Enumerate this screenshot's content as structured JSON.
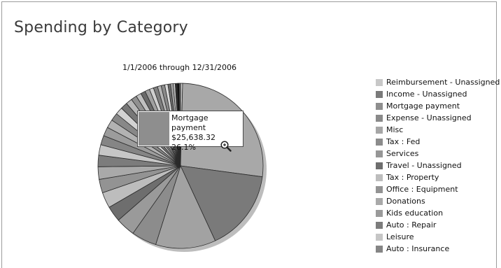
{
  "report": {
    "title": "Spending by Category",
    "date_range": "1/1/2006 through 12/31/2006"
  },
  "tooltip": {
    "category": "Mortgage payment",
    "amount": "$25,638.32",
    "percent": "26.1%",
    "swatch_color": "#8e8e8e"
  },
  "icons": {
    "cursor": "magnifier-icon"
  },
  "chart_data": {
    "type": "pie",
    "title": "Spending by Category",
    "subtitle": "1/1/2006 through 12/31/2006",
    "legend_position": "right",
    "highlighted": "Mortgage payment",
    "legend": [
      {
        "name": "Reimbursement - Unassigned",
        "color": "#c8c8c8"
      },
      {
        "name": "Income - Unassigned",
        "color": "#7a7a7a"
      },
      {
        "name": "Mortgage payment",
        "color": "#8e8e8e"
      },
      {
        "name": "Expense - Unassigned",
        "color": "#8a8a8a"
      },
      {
        "name": "Misc",
        "color": "#a6a6a6"
      },
      {
        "name": "Tax : Fed",
        "color": "#8c8c8c"
      },
      {
        "name": "Services",
        "color": "#969696"
      },
      {
        "name": "Travel - Unassigned",
        "color": "#6e6e6e"
      },
      {
        "name": "Tax : Property",
        "color": "#bdbdbd"
      },
      {
        "name": "Office : Equipment",
        "color": "#939393"
      },
      {
        "name": "Donations",
        "color": "#a9a9a9"
      },
      {
        "name": "Kids education",
        "color": "#9a9a9a"
      },
      {
        "name": "Auto : Repair",
        "color": "#7c7c7c"
      },
      {
        "name": "Leisure",
        "color": "#c6c6c6"
      },
      {
        "name": "Auto : Insurance",
        "color": "#858585"
      }
    ],
    "slices": [
      {
        "name": "Reimbursement - Unassigned",
        "value": 0.4,
        "color": "#c8c8c8"
      },
      {
        "name": "Mortgage payment",
        "value": 26.1,
        "color": "#a8a8a8"
      },
      {
        "name": "Income - Unassigned",
        "value": 15.6,
        "color": "#7a7a7a"
      },
      {
        "name": "Expense - Unassigned",
        "value": 11.5,
        "color": "#a2a2a2"
      },
      {
        "name": "Misc",
        "value": 4.8,
        "color": "#8c8c8c"
      },
      {
        "name": "Tax : Fed",
        "value": 3.7,
        "color": "#9a9a9a"
      },
      {
        "name": "Services",
        "value": 3.0,
        "color": "#6e6e6e"
      },
      {
        "name": "Travel - Unassigned",
        "value": 3.0,
        "color": "#bdbdbd"
      },
      {
        "name": "Tax : Property",
        "value": 2.6,
        "color": "#939393"
      },
      {
        "name": "Office : Equipment",
        "value": 2.4,
        "color": "#a9a9a9"
      },
      {
        "name": "Donations",
        "value": 2.2,
        "color": "#7c7c7c"
      },
      {
        "name": "Kids education",
        "value": 2.0,
        "color": "#c6c6c6"
      },
      {
        "name": "Auto : Repair",
        "value": 1.8,
        "color": "#858585"
      },
      {
        "name": "Leisure",
        "value": 1.7,
        "color": "#9c9c9c"
      },
      {
        "name": "Auto : Insurance",
        "value": 1.6,
        "color": "#b2b2b2"
      },
      {
        "value": 1.5,
        "color": "#888888"
      },
      {
        "value": 1.4,
        "color": "#d2d2d2"
      },
      {
        "value": 1.3,
        "color": "#777777"
      },
      {
        "value": 1.2,
        "color": "#b8b8b8"
      },
      {
        "value": 1.1,
        "color": "#909090"
      },
      {
        "value": 1.0,
        "color": "#c0c0c0"
      },
      {
        "value": 0.9,
        "color": "#6a6a6a"
      },
      {
        "value": 0.9,
        "color": "#a0a0a0"
      },
      {
        "value": 0.8,
        "color": "#cfcfcf"
      },
      {
        "value": 0.8,
        "color": "#7e7e7e"
      },
      {
        "value": 0.7,
        "color": "#b4b4b4"
      },
      {
        "value": 0.7,
        "color": "#8a8a8a"
      },
      {
        "value": 0.6,
        "color": "#dadada"
      },
      {
        "value": 0.5,
        "color": "#6c6c6c"
      },
      {
        "value": 0.5,
        "color": "#a4a4a4"
      },
      {
        "value": 0.4,
        "color": "#c4c4c4"
      },
      {
        "value": 0.4,
        "color": "#2a2a2a"
      },
      {
        "value": 0.3,
        "color": "#000000"
      },
      {
        "value": 0.3,
        "color": "#5a5a5a"
      }
    ]
  }
}
